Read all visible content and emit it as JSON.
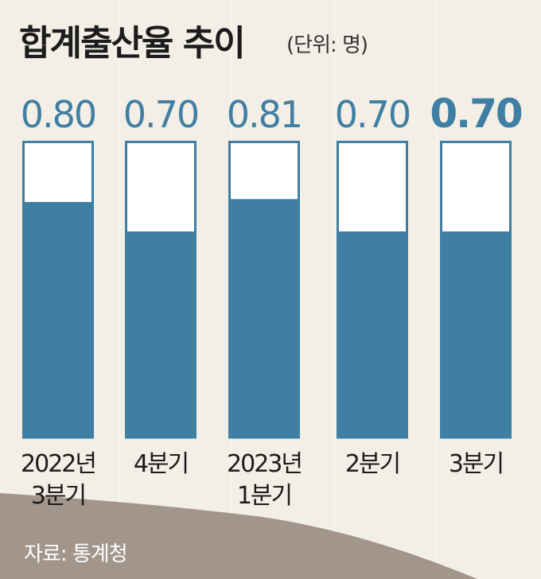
{
  "header": {
    "title": "합계출산율 추이",
    "unit": "(단위: 명)"
  },
  "source": "자료: 통계청",
  "colors": {
    "bar": "#3f7fa3",
    "outline": "#3f7fa3",
    "value_text": "#3f7fa3",
    "background": "#f3efe6",
    "wave": "#a2968c"
  },
  "chart_data": {
    "type": "bar",
    "categories": [
      "2022년\n3분기",
      "4분기",
      "2023년\n1분기",
      "2분기",
      "3분기"
    ],
    "values": [
      0.8,
      0.7,
      0.81,
      0.7,
      0.7
    ],
    "value_labels": [
      "0.80",
      "0.70",
      "0.81",
      "0.70",
      "0.70"
    ],
    "title": "합계출산율 추이",
    "ylim": [
      0,
      1
    ],
    "grid": false
  }
}
